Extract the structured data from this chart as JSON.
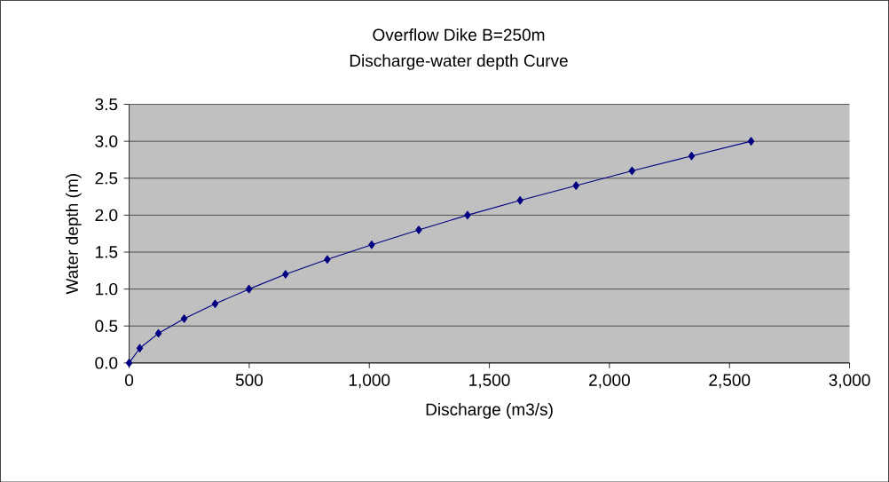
{
  "chart_data": {
    "type": "line",
    "title": "Overflow Dike B=250m\nDischarge-water depth Curve",
    "xlabel": "Discharge (m3/s)",
    "ylabel": "Water depth (m)",
    "x": [
      0,
      44,
      122,
      229,
      358,
      499,
      651,
      825,
      1010,
      1206,
      1409,
      1628,
      1861,
      2094,
      2342,
      2590
    ],
    "series": [
      {
        "color": "#000080",
        "values": [
          0,
          0.2,
          0.4,
          0.6,
          0.8,
          1.0,
          1.2,
          1.4,
          1.6,
          1.8,
          2.0,
          2.2,
          2.4,
          2.6,
          2.8,
          3.0
        ]
      }
    ],
    "xlim": [
      0,
      3000
    ],
    "ylim": [
      0,
      3.5
    ],
    "xticks": [
      0,
      500,
      {
        "value": 1000,
        "label": "1,000"
      },
      {
        "value": 1500,
        "label": "1,500"
      },
      {
        "value": 2000,
        "label": "2,000"
      },
      {
        "value": 2500,
        "label": "2,500"
      },
      {
        "value": 3000,
        "label": "3,000"
      }
    ],
    "yticks": [
      {
        "value": 0,
        "label": "0.0"
      },
      {
        "value": 0.5,
        "label": "0.5"
      },
      {
        "value": 1,
        "label": "1.0"
      },
      {
        "value": 1.5,
        "label": "1.5"
      },
      {
        "value": 2,
        "label": "2.0"
      },
      {
        "value": 2.5,
        "label": "2.5"
      },
      {
        "value": 3,
        "label": "3.0"
      },
      {
        "value": 3.5,
        "label": "3.5"
      }
    ],
    "grid": "y",
    "marker": "diamond",
    "line_style": "solid"
  }
}
